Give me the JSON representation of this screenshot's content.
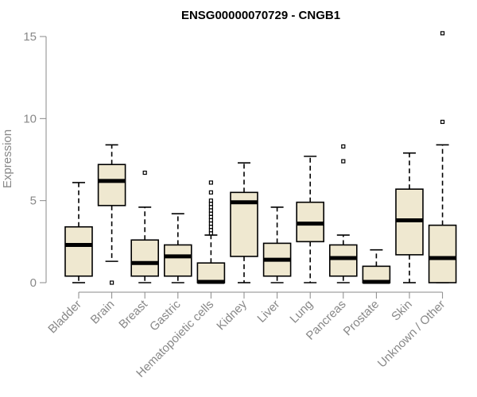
{
  "chart_data": {
    "type": "boxplot",
    "title": "ENSG00000070729 - CNGB1",
    "xlabel": "",
    "ylabel": "Expression",
    "ylim": [
      0,
      15.5
    ],
    "yticks": [
      0,
      5,
      10,
      15
    ],
    "categories": [
      "Bladder",
      "Brain",
      "Breast",
      "Gastric",
      "Hematopoietic cells",
      "Kidney",
      "Liver",
      "Lung",
      "Pancreas",
      "Prostate",
      "Skin",
      "Unknown / Other"
    ],
    "boxes": [
      {
        "min": 0.0,
        "q1": 0.4,
        "median": 2.3,
        "q3": 3.4,
        "max": 6.1,
        "outliers": []
      },
      {
        "min": 1.3,
        "q1": 4.7,
        "median": 6.2,
        "q3": 7.2,
        "max": 8.4,
        "outliers": [
          0.0
        ]
      },
      {
        "min": 0.0,
        "q1": 0.4,
        "median": 1.2,
        "q3": 2.6,
        "max": 4.6,
        "outliers": [
          6.7
        ]
      },
      {
        "min": 0.0,
        "q1": 0.4,
        "median": 1.6,
        "q3": 2.3,
        "max": 4.2,
        "outliers": []
      },
      {
        "min": 0.0,
        "q1": 0.0,
        "median": 0.05,
        "q3": 1.2,
        "max": 2.9,
        "outliers": [
          3.0,
          3.2,
          3.4,
          3.6,
          3.8,
          4.0,
          4.2,
          4.4,
          4.6,
          4.8,
          5.0,
          5.5,
          6.1
        ]
      },
      {
        "min": 0.0,
        "q1": 1.6,
        "median": 4.9,
        "q3": 5.5,
        "max": 7.3,
        "outliers": []
      },
      {
        "min": 0.0,
        "q1": 0.4,
        "median": 1.4,
        "q3": 2.4,
        "max": 4.6,
        "outliers": []
      },
      {
        "min": 0.0,
        "q1": 2.5,
        "median": 3.6,
        "q3": 4.9,
        "max": 7.7,
        "outliers": []
      },
      {
        "min": 0.0,
        "q1": 0.4,
        "median": 1.5,
        "q3": 2.3,
        "max": 2.9,
        "outliers": [
          7.4,
          8.3
        ]
      },
      {
        "min": 0.0,
        "q1": 0.0,
        "median": 0.05,
        "q3": 1.0,
        "max": 2.0,
        "outliers": []
      },
      {
        "min": 0.0,
        "q1": 1.7,
        "median": 3.8,
        "q3": 5.7,
        "max": 7.9,
        "outliers": []
      },
      {
        "min": 0.0,
        "q1": 0.0,
        "median": 1.5,
        "q3": 3.5,
        "max": 8.4,
        "outliers": [
          9.8,
          15.2
        ]
      }
    ],
    "grid": false,
    "legend": "none"
  }
}
